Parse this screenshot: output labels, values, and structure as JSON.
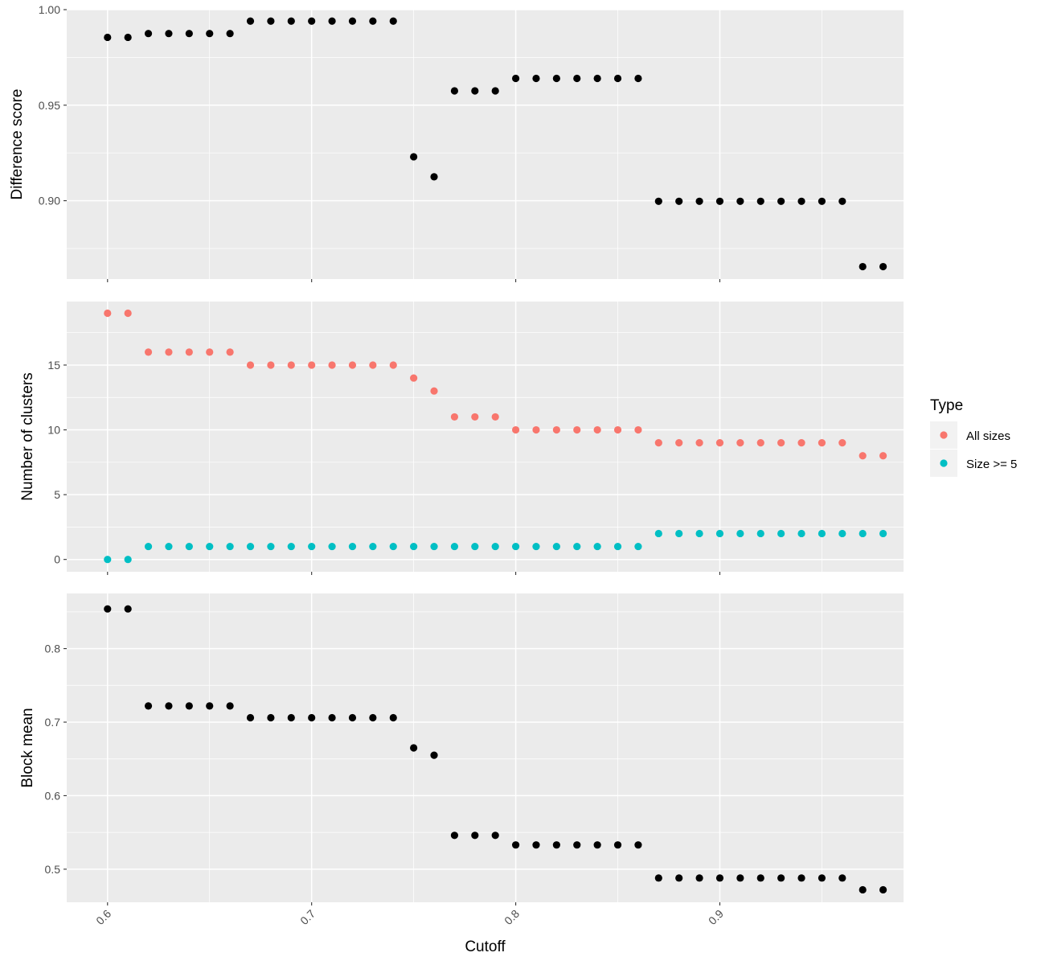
{
  "chart_data": [
    {
      "type": "scatter",
      "panel": "difference",
      "ylabel": "Difference score",
      "xlabel": "",
      "xlim": [
        0.58,
        0.99
      ],
      "ylim": [
        0.859,
        1.0
      ],
      "yticks": [
        0.9,
        0.95,
        1.0
      ],
      "ytick_labels": [
        "0.90",
        "0.95",
        "1.00"
      ],
      "grid": true,
      "series": [
        {
          "color": "#000000",
          "x": [
            0.6,
            0.61,
            0.62,
            0.63,
            0.64,
            0.65,
            0.66,
            0.67,
            0.68,
            0.69,
            0.7,
            0.71,
            0.72,
            0.73,
            0.74,
            0.75,
            0.76,
            0.77,
            0.78,
            0.79,
            0.8,
            0.81,
            0.82,
            0.83,
            0.84,
            0.85,
            0.86,
            0.87,
            0.88,
            0.89,
            0.9,
            0.91,
            0.92,
            0.93,
            0.94,
            0.95,
            0.96,
            0.97,
            0.98
          ],
          "values": [
            0.9855,
            0.9855,
            0.9875,
            0.9875,
            0.9875,
            0.9875,
            0.9875,
            0.994,
            0.994,
            0.994,
            0.994,
            0.994,
            0.994,
            0.994,
            0.994,
            0.923,
            0.9125,
            0.9575,
            0.9575,
            0.9575,
            0.964,
            0.964,
            0.964,
            0.964,
            0.964,
            0.964,
            0.964,
            0.8997,
            0.8997,
            0.8997,
            0.8997,
            0.8997,
            0.8997,
            0.8997,
            0.8997,
            0.8997,
            0.8997,
            0.8655,
            0.8655
          ]
        }
      ]
    },
    {
      "type": "scatter",
      "panel": "clusters",
      "ylabel": "Number of clusters",
      "xlabel": "",
      "xlim": [
        0.58,
        0.99
      ],
      "ylim": [
        -0.95,
        19.9
      ],
      "yticks": [
        0,
        5,
        10,
        15
      ],
      "ytick_labels": [
        "0",
        "5",
        "10",
        "15"
      ],
      "grid": true,
      "legend": {
        "title": "Type",
        "placement": "right"
      },
      "series": [
        {
          "name": "All sizes",
          "color": "#F8766D",
          "x": [
            0.6,
            0.61,
            0.62,
            0.63,
            0.64,
            0.65,
            0.66,
            0.67,
            0.68,
            0.69,
            0.7,
            0.71,
            0.72,
            0.73,
            0.74,
            0.75,
            0.76,
            0.77,
            0.78,
            0.79,
            0.8,
            0.81,
            0.82,
            0.83,
            0.84,
            0.85,
            0.86,
            0.87,
            0.88,
            0.89,
            0.9,
            0.91,
            0.92,
            0.93,
            0.94,
            0.95,
            0.96,
            0.97,
            0.98
          ],
          "values": [
            19,
            19,
            16,
            16,
            16,
            16,
            16,
            15,
            15,
            15,
            15,
            15,
            15,
            15,
            15,
            14,
            13,
            11,
            11,
            11,
            10,
            10,
            10,
            10,
            10,
            10,
            10,
            9,
            9,
            9,
            9,
            9,
            9,
            9,
            9,
            9,
            9,
            8,
            8
          ]
        },
        {
          "name": "Size >= 5",
          "color": "#00BFC4",
          "x": [
            0.6,
            0.61,
            0.62,
            0.63,
            0.64,
            0.65,
            0.66,
            0.67,
            0.68,
            0.69,
            0.7,
            0.71,
            0.72,
            0.73,
            0.74,
            0.75,
            0.76,
            0.77,
            0.78,
            0.79,
            0.8,
            0.81,
            0.82,
            0.83,
            0.84,
            0.85,
            0.86,
            0.87,
            0.88,
            0.89,
            0.9,
            0.91,
            0.92,
            0.93,
            0.94,
            0.95,
            0.96,
            0.97,
            0.98
          ],
          "values": [
            0,
            0,
            1,
            1,
            1,
            1,
            1,
            1,
            1,
            1,
            1,
            1,
            1,
            1,
            1,
            1,
            1,
            1,
            1,
            1,
            1,
            1,
            1,
            1,
            1,
            1,
            1,
            2,
            2,
            2,
            2,
            2,
            2,
            2,
            2,
            2,
            2,
            2,
            2
          ]
        }
      ]
    },
    {
      "type": "scatter",
      "panel": "block",
      "ylabel": "Block mean",
      "xlabel": "Cutoff",
      "xlim": [
        0.58,
        0.99
      ],
      "ylim": [
        0.455,
        0.875
      ],
      "yticks": [
        0.5,
        0.6,
        0.7,
        0.8
      ],
      "ytick_labels": [
        "0.5",
        "0.6",
        "0.7",
        "0.8"
      ],
      "xticks": [
        0.6,
        0.7,
        0.8,
        0.9
      ],
      "xtick_labels": [
        "0.6",
        "0.7",
        "0.8",
        "0.9"
      ],
      "grid": true,
      "series": [
        {
          "color": "#000000",
          "x": [
            0.6,
            0.61,
            0.62,
            0.63,
            0.64,
            0.65,
            0.66,
            0.67,
            0.68,
            0.69,
            0.7,
            0.71,
            0.72,
            0.73,
            0.74,
            0.75,
            0.76,
            0.77,
            0.78,
            0.79,
            0.8,
            0.81,
            0.82,
            0.83,
            0.84,
            0.85,
            0.86,
            0.87,
            0.88,
            0.89,
            0.9,
            0.91,
            0.92,
            0.93,
            0.94,
            0.95,
            0.96,
            0.97,
            0.98
          ],
          "values": [
            0.854,
            0.854,
            0.722,
            0.722,
            0.722,
            0.722,
            0.722,
            0.706,
            0.706,
            0.706,
            0.706,
            0.706,
            0.706,
            0.706,
            0.706,
            0.665,
            0.655,
            0.546,
            0.546,
            0.546,
            0.533,
            0.533,
            0.533,
            0.533,
            0.533,
            0.533,
            0.533,
            0.488,
            0.488,
            0.488,
            0.488,
            0.488,
            0.488,
            0.488,
            0.488,
            0.488,
            0.488,
            0.472,
            0.472
          ]
        }
      ]
    }
  ]
}
